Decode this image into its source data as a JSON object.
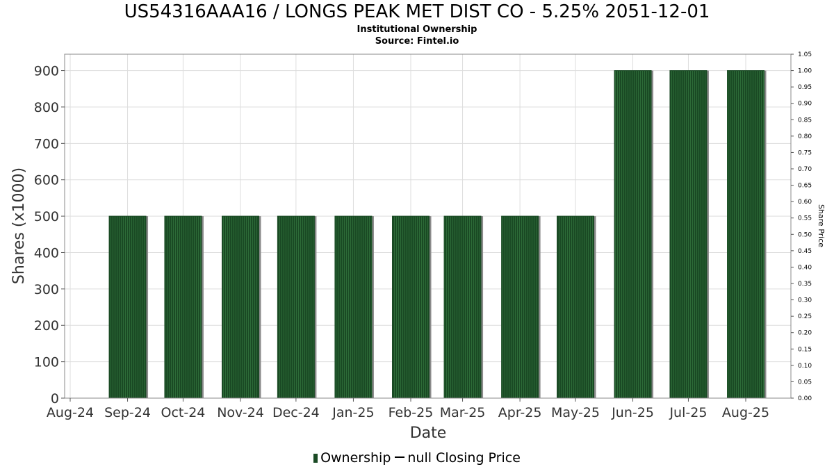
{
  "header": {
    "title": "US54316AAA16 / LONGS PEAK MET DIST CO - 5.25% 2051-12-01",
    "subtitle": "Institutional Ownership",
    "source": "Source: Fintel.io"
  },
  "legend": {
    "ownership_label": "Ownership",
    "price_label": "null Closing Price"
  },
  "colors": {
    "bar_fill": "#1a4a24",
    "bar_stripe": "#2d6b38",
    "bar_shadow": "#8a8a8a",
    "grid": "#dddddd",
    "axis": "#888888"
  },
  "chart_data": {
    "type": "bar",
    "title": "US54316AAA16 / LONGS PEAK MET DIST CO - 5.25% 2051-12-01",
    "subtitle": "Institutional Ownership",
    "xlabel": "Date",
    "ylabel": "Shares (x1000)",
    "y2label": "Share Price",
    "categories": [
      "Aug-24",
      "Sep-24",
      "Oct-24",
      "Nov-24",
      "Dec-24",
      "Jan-25",
      "Feb-25",
      "Mar-25",
      "Apr-25",
      "May-25",
      "Jun-25",
      "Jul-25",
      "Aug-25"
    ],
    "series": [
      {
        "name": "Ownership",
        "values": [
          null,
          500,
          500,
          500,
          500,
          500,
          500,
          500,
          500,
          500,
          900,
          900,
          900
        ]
      }
    ],
    "ylim": [
      0,
      945
    ],
    "yticks": [
      0,
      100,
      200,
      300,
      400,
      500,
      600,
      700,
      800,
      900
    ],
    "y2lim": [
      0,
      1.05
    ],
    "y2ticks": [
      "0.00",
      "0.05",
      "0.10",
      "0.15",
      "0.20",
      "0.25",
      "0.30",
      "0.35",
      "0.40",
      "0.45",
      "0.50",
      "0.55",
      "0.60",
      "0.65",
      "0.70",
      "0.75",
      "0.80",
      "0.85",
      "0.90",
      "0.95",
      "1.00",
      "1.05"
    ],
    "grid": true,
    "legend_position": "bottom-center"
  }
}
